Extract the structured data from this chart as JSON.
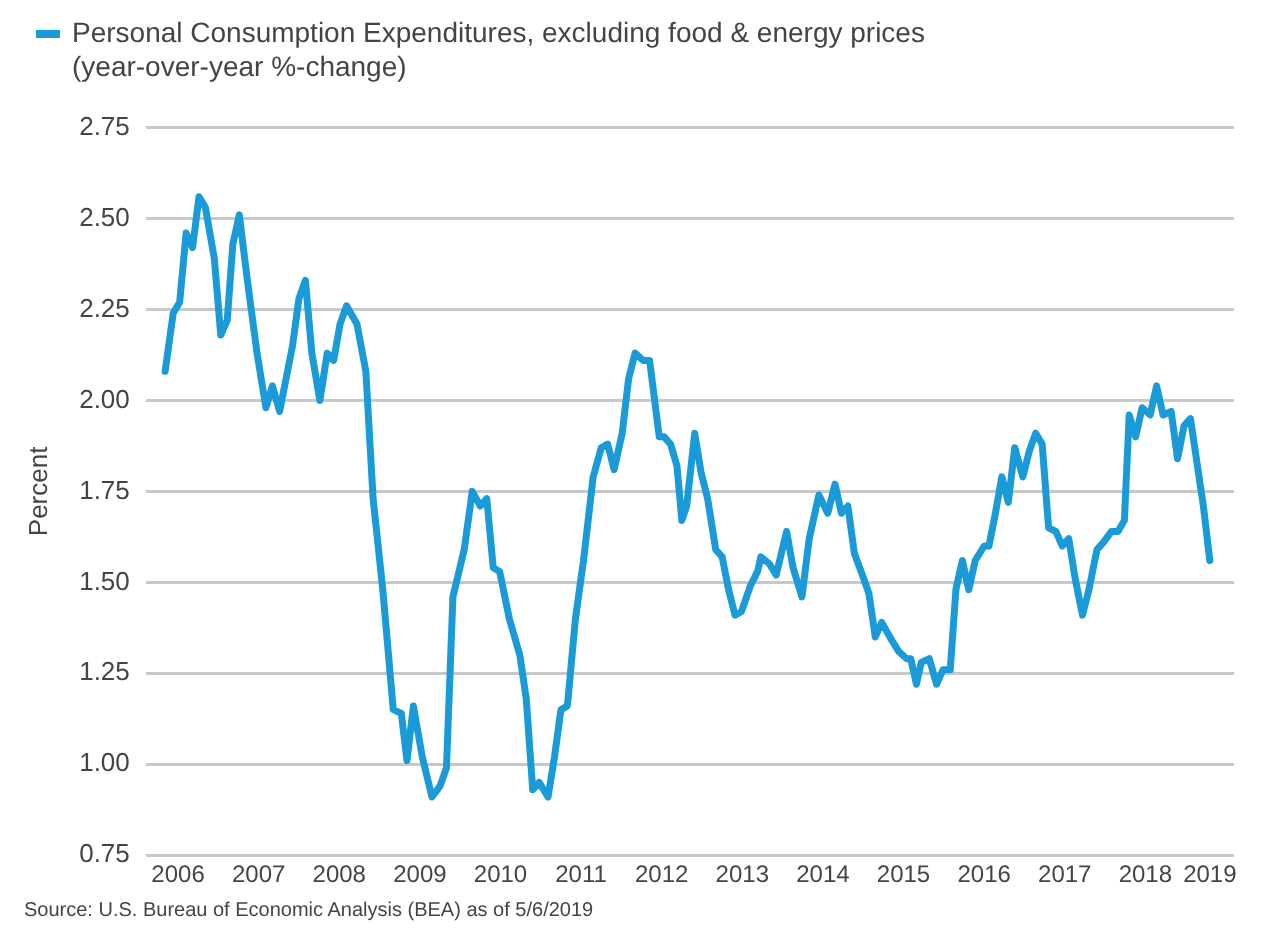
{
  "chart_data": {
    "type": "line",
    "ylabel": "Percent",
    "legend": "top left",
    "grid": "y",
    "marker": "none",
    "line_style": "solid",
    "xlim": [
      2006.1,
      2019.6
    ],
    "xticks": [
      {
        "value": 2006.5,
        "label": "2006"
      },
      {
        "value": 2007.5,
        "label": "2007"
      },
      {
        "value": 2008.5,
        "label": "2008"
      },
      {
        "value": 2009.5,
        "label": "2009"
      },
      {
        "value": 2010.5,
        "label": "2010"
      },
      {
        "value": 2011.5,
        "label": "2011"
      },
      {
        "value": 2012.5,
        "label": "2012"
      },
      {
        "value": 2013.5,
        "label": "2013"
      },
      {
        "value": 2014.5,
        "label": "2014"
      },
      {
        "value": 2015.5,
        "label": "2015"
      },
      {
        "value": 2016.5,
        "label": "2016"
      },
      {
        "value": 2017.5,
        "label": "2017"
      },
      {
        "value": 2018.5,
        "label": "2018"
      },
      {
        "value": 2019.3,
        "label": "2019"
      }
    ],
    "ylim": [
      0.75,
      2.75
    ],
    "yticks": [
      {
        "value": 0.75,
        "label": "0.75"
      },
      {
        "value": 1.0,
        "label": "1.00"
      },
      {
        "value": 1.25,
        "label": "1.25"
      },
      {
        "value": 1.5,
        "label": "1.50"
      },
      {
        "value": 1.75,
        "label": "1.75"
      },
      {
        "value": 2.0,
        "label": "2.00"
      },
      {
        "value": 2.25,
        "label": "2.25"
      },
      {
        "value": 2.5,
        "label": "2.50"
      },
      {
        "value": 2.75,
        "label": "2.75"
      }
    ],
    "annotations": [
      "Source: U.S. Bureau of Economic Analysis (BEA) as of 5/6/2019"
    ],
    "series": [
      {
        "name": "Personal Consumption Expenditures, excluding food & energy prices (year-over-year %-change)",
        "color": "#1a9bd7",
        "x": [
          2006.34,
          2006.44,
          2006.52,
          2006.6,
          2006.68,
          2006.76,
          2006.84,
          2006.95,
          2007.03,
          2007.11,
          2007.18,
          2007.26,
          2007.36,
          2007.48,
          2007.59,
          2007.67,
          2007.76,
          2007.84,
          2007.92,
          2008.0,
          2008.08,
          2008.16,
          2008.26,
          2008.35,
          2008.43,
          2008.51,
          2008.59,
          2008.72,
          2008.83,
          2008.92,
          2009.04,
          2009.17,
          2009.27,
          2009.34,
          2009.42,
          2009.53,
          2009.65,
          2009.75,
          2009.83,
          2009.91,
          2010.05,
          2010.15,
          2010.25,
          2010.33,
          2010.41,
          2010.49,
          2010.61,
          2010.74,
          2010.82,
          2010.9,
          2010.98,
          2011.09,
          2011.17,
          2011.25,
          2011.33,
          2011.43,
          2011.53,
          2011.65,
          2011.75,
          2011.83,
          2011.91,
          2012.01,
          2012.09,
          2012.17,
          2012.27,
          2012.35,
          2012.47,
          2012.53,
          2012.61,
          2012.69,
          2012.75,
          2012.81,
          2012.91,
          2012.99,
          2013.07,
          2013.17,
          2013.25,
          2013.33,
          2013.41,
          2013.49,
          2013.6,
          2013.69,
          2013.73,
          2013.84,
          2013.92,
          2014.05,
          2014.13,
          2014.24,
          2014.33,
          2014.45,
          2014.56,
          2014.65,
          2014.73,
          2014.81,
          2014.89,
          2014.99,
          2015.07,
          2015.15,
          2015.23,
          2015.33,
          2015.44,
          2015.54,
          2015.59,
          2015.66,
          2015.72,
          2015.82,
          2015.91,
          2015.99,
          2016.08,
          2016.15,
          2016.23,
          2016.31,
          2016.39,
          2016.5,
          2016.56,
          2016.64,
          2016.72,
          2016.8,
          2016.88,
          2016.98,
          2017.06,
          2017.14,
          2017.22,
          2017.3,
          2017.39,
          2017.47,
          2017.55,
          2017.63,
          2017.72,
          2017.8,
          2017.9,
          2017.98,
          2018.08,
          2018.16,
          2018.24,
          2018.3,
          2018.38,
          2018.46,
          2018.56,
          2018.64,
          2018.72,
          2018.82,
          2018.9,
          2018.98,
          2019.06,
          2019.16,
          2019.22,
          2019.3
        ],
        "values": [
          2.08,
          2.24,
          2.27,
          2.46,
          2.42,
          2.56,
          2.53,
          2.39,
          2.18,
          2.22,
          2.43,
          2.51,
          2.33,
          2.13,
          1.98,
          2.04,
          1.97,
          2.06,
          2.15,
          2.28,
          2.33,
          2.13,
          2.0,
          2.13,
          2.11,
          2.21,
          2.26,
          2.21,
          2.08,
          1.73,
          1.48,
          1.15,
          1.14,
          1.01,
          1.16,
          1.02,
          0.91,
          0.94,
          0.99,
          1.46,
          1.59,
          1.75,
          1.71,
          1.73,
          1.54,
          1.53,
          1.4,
          1.3,
          1.18,
          0.93,
          0.95,
          0.91,
          1.02,
          1.15,
          1.16,
          1.4,
          1.56,
          1.79,
          1.87,
          1.88,
          1.81,
          1.91,
          2.06,
          2.13,
          2.11,
          2.11,
          1.9,
          1.9,
          1.88,
          1.82,
          1.67,
          1.71,
          1.91,
          1.8,
          1.73,
          1.59,
          1.57,
          1.48,
          1.41,
          1.42,
          1.49,
          1.53,
          1.57,
          1.55,
          1.52,
          1.64,
          1.54,
          1.46,
          1.62,
          1.74,
          1.69,
          1.77,
          1.69,
          1.71,
          1.58,
          1.52,
          1.47,
          1.35,
          1.39,
          1.35,
          1.31,
          1.29,
          1.29,
          1.22,
          1.28,
          1.29,
          1.22,
          1.26,
          1.26,
          1.48,
          1.56,
          1.48,
          1.56,
          1.6,
          1.6,
          1.69,
          1.79,
          1.72,
          1.87,
          1.79,
          1.86,
          1.91,
          1.88,
          1.65,
          1.64,
          1.6,
          1.62,
          1.51,
          1.41,
          1.48,
          1.59,
          1.61,
          1.64,
          1.64,
          1.67,
          1.96,
          1.9,
          1.98,
          1.96,
          2.04,
          1.96,
          1.97,
          1.84,
          1.93,
          1.95,
          1.8,
          1.71,
          1.56
        ]
      }
    ]
  }
}
